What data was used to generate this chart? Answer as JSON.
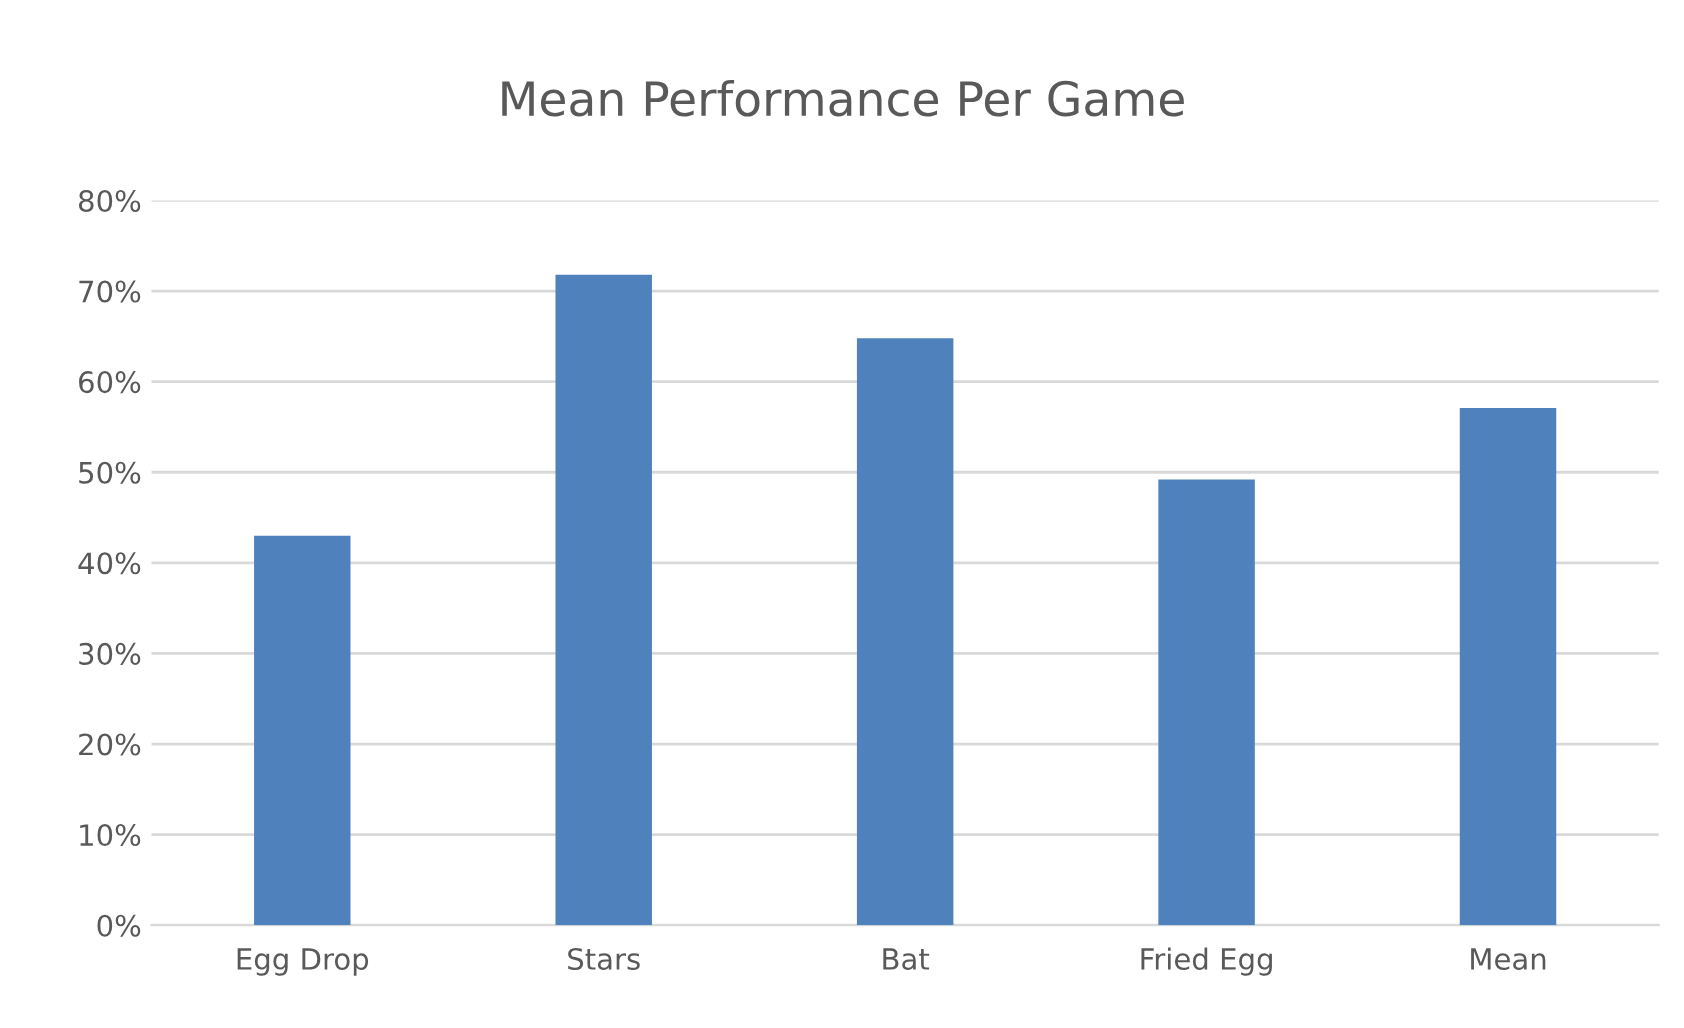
{
  "chart_data": {
    "type": "bar",
    "title": "Mean Performance Per Game",
    "categories": [
      "Egg Drop",
      "Stars",
      "Bat",
      "Fried Egg",
      "Mean"
    ],
    "values": [
      43,
      71.8,
      64.8,
      49.2,
      57.1
    ],
    "color": "#4f81bd",
    "ylim": [
      0,
      80
    ],
    "yticks": [
      {
        "value": 0,
        "label": "0%"
      },
      {
        "value": 10,
        "label": "10%"
      },
      {
        "value": 20,
        "label": "20%"
      },
      {
        "value": 30,
        "label": "30%"
      },
      {
        "value": 40,
        "label": "40%"
      },
      {
        "value": 50,
        "label": "50%"
      },
      {
        "value": 60,
        "label": "60%"
      },
      {
        "value": 70,
        "label": "70%"
      },
      {
        "value": 80,
        "label": "80%"
      }
    ],
    "grid": "y"
  }
}
